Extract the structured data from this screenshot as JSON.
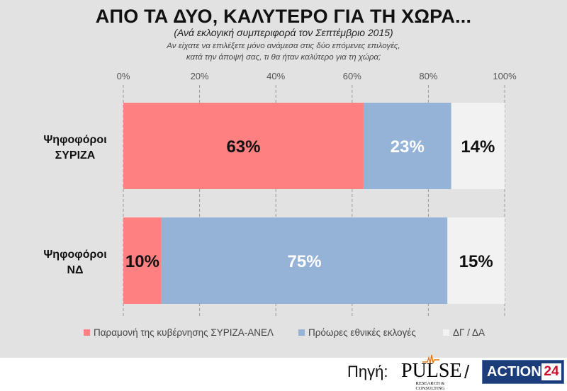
{
  "chart_data": {
    "type": "bar",
    "orientation": "horizontal",
    "stacked": true,
    "title": "ΑΠΟ ΤΑ ΔΥΟ, ΚΑΛΥΤΕΡΟ ΓΙΑ ΤΗ ΧΩΡΑ...",
    "subtitle": "(Ανά εκλογική συμπεριφορά τον Σεπτέμβριο 2015)",
    "question_lines": [
      "Αν είχατε να επιλέξετε μόνο ανάμεσα στις δύο επόμενες επιλογές,",
      "κατά την άποψή σας, τι θα ήταν καλύτερο για τη χώρα;"
    ],
    "categories": [
      [
        "Ψηφοφόροι",
        "ΣΥΡΙΖΑ"
      ],
      [
        "Ψηφοφόροι",
        "ΝΔ"
      ]
    ],
    "series": [
      {
        "name": "Παραμονή της κυβέρνησης ΣΥΡΙΖΑ-ΑΝΕΛ",
        "values": [
          63,
          10
        ],
        "color": "#ff8080",
        "label_color": "#111111"
      },
      {
        "name": "Πρόωρες εθνικές εκλογές",
        "values": [
          23,
          75
        ],
        "color": "#95b3d7",
        "label_color": "#ffffff"
      },
      {
        "name": "ΔΓ / ΔΑ",
        "values": [
          14,
          15
        ],
        "color": "#f2f2f2",
        "label_color": "#111111"
      }
    ],
    "value_suffix": "%",
    "x_ticks": [
      "0%",
      "20%",
      "40%",
      "60%",
      "80%",
      "100%"
    ],
    "xlim": [
      0,
      100
    ],
    "grid": true,
    "legend_position": "bottom"
  },
  "footer": {
    "source_label": "Πηγή:",
    "pulse_word": "PULSE",
    "pulse_tagline": "RESEARCH & CONSULTING",
    "separator": "/",
    "action_word": "ACTION",
    "action_number": "24"
  }
}
